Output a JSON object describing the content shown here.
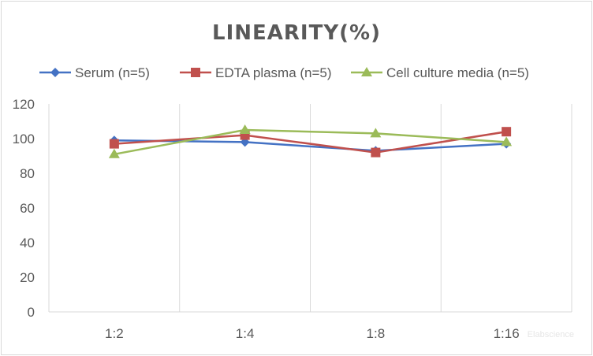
{
  "chart_data": {
    "type": "line",
    "title": "LINEARITY(%)",
    "categories": [
      "1:2",
      "1:4",
      "1:8",
      "1:16"
    ],
    "ylim": [
      0,
      120
    ],
    "yticks": [
      0,
      20,
      40,
      60,
      80,
      100,
      120
    ],
    "xlabel": "",
    "ylabel": "",
    "legend_position": "top",
    "grid": "vertical",
    "series": [
      {
        "name": "Serum (n=5)",
        "values": [
          99,
          98,
          93,
          97
        ],
        "color": "#4472c4",
        "marker": "diamond"
      },
      {
        "name": "EDTA plasma (n=5)",
        "values": [
          97,
          102,
          92,
          104
        ],
        "color": "#c0504d",
        "marker": "square"
      },
      {
        "name": "Cell culture media (n=5)",
        "values": [
          91,
          105,
          103,
          98
        ],
        "color": "#9bbb59",
        "marker": "triangle"
      }
    ]
  },
  "watermark": "Elabscience"
}
